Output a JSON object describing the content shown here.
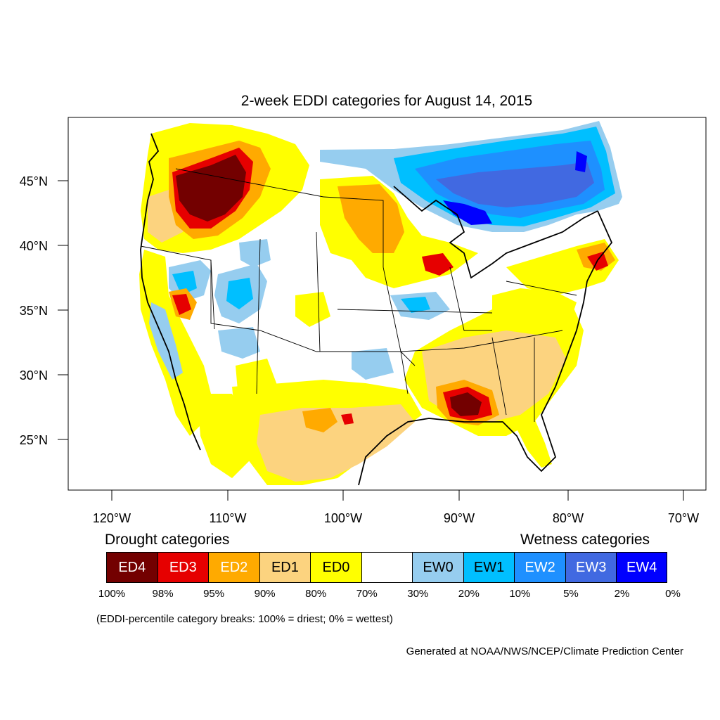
{
  "title": "2-week EDDI categories for August 14, 2015",
  "map": {
    "lat_labels": [
      "45°N",
      "40°N",
      "35°N",
      "30°N",
      "25°N"
    ],
    "lon_labels": [
      "120°W",
      "110°W",
      "100°W",
      "90°W",
      "80°W",
      "70°W"
    ]
  },
  "legend": {
    "drought_heading": "Drought categories",
    "wetness_heading": "Wetness categories",
    "categories": [
      {
        "label": "ED4",
        "color": "#730000",
        "text_color": "#ffffff"
      },
      {
        "label": "ED3",
        "color": "#e60000",
        "text_color": "#ffffff"
      },
      {
        "label": "ED2",
        "color": "#ffaa00",
        "text_color": "#ffffff"
      },
      {
        "label": "ED1",
        "color": "#fcd37f",
        "text_color": "#000000"
      },
      {
        "label": "ED0",
        "color": "#ffff00",
        "text_color": "#000000"
      },
      {
        "label": "",
        "color": "#ffffff",
        "text_color": "#000000"
      },
      {
        "label": "EW0",
        "color": "#96cdef",
        "text_color": "#000000"
      },
      {
        "label": "EW1",
        "color": "#00bfff",
        "text_color": "#000000"
      },
      {
        "label": "EW2",
        "color": "#1e90ff",
        "text_color": "#ffffff"
      },
      {
        "label": "EW3",
        "color": "#4169e1",
        "text_color": "#ffffff"
      },
      {
        "label": "EW4",
        "color": "#0000ff",
        "text_color": "#ffffff"
      }
    ],
    "breaks": [
      "100%",
      "98%",
      "95%",
      "90%",
      "80%",
      "70%",
      "30%",
      "20%",
      "10%",
      "5%",
      "2%",
      "0%"
    ]
  },
  "note": "(EDDI-percentile category breaks: 100% = driest; 0% = wettest)",
  "credit": "Generated at NOAA/NWS/NCEP/Climate Prediction Center"
}
